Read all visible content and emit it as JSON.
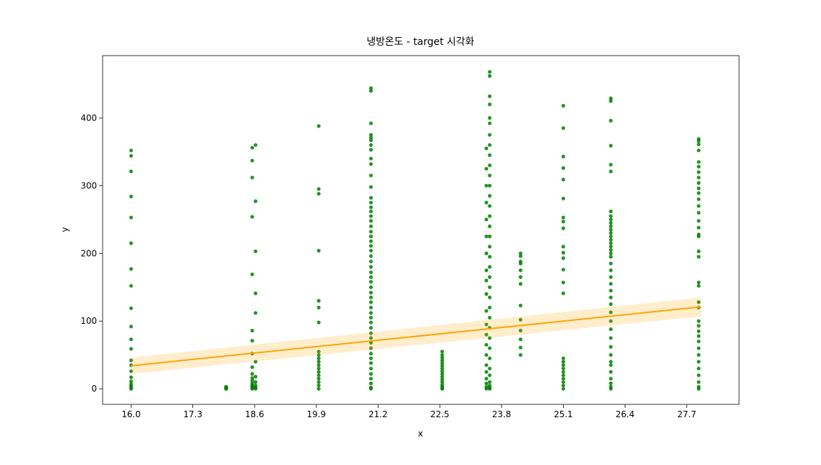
{
  "chart_data": {
    "type": "scatter",
    "title": "냉방온도 - target 시각화",
    "xlabel": "x",
    "ylabel": "y",
    "xlim": [
      15.4,
      28.8
    ],
    "ylim": [
      -23,
      492
    ],
    "xticks": [
      16.0,
      17.3,
      18.6,
      19.9,
      21.2,
      22.5,
      23.8,
      25.1,
      26.4,
      27.7
    ],
    "xtick_labels": [
      "16.0",
      "17.3",
      "18.6",
      "19.9",
      "21.2",
      "22.5",
      "23.8",
      "25.1",
      "26.4",
      "27.7"
    ],
    "yticks": [
      0,
      100,
      200,
      300,
      400
    ],
    "ytick_labels": [
      "0",
      "100",
      "200",
      "300",
      "400"
    ],
    "grid": false,
    "colors": {
      "points": "#008000",
      "regression": "#ffa500",
      "band": "#ffa500"
    },
    "regression": {
      "x": [
        16.0,
        28.0
      ],
      "y": [
        34,
        121
      ],
      "ci_lower": [
        22,
        107
      ],
      "ci_upper": [
        46,
        135
      ]
    },
    "points": [
      {
        "x": 16.0,
        "y": [
          352,
          344,
          321,
          284,
          253,
          215,
          177,
          152,
          119,
          92,
          73,
          59,
          42,
          35,
          26,
          17,
          11,
          7,
          4,
          2,
          0
        ]
      },
      {
        "x": 18.0,
        "y": [
          3,
          2,
          1,
          0,
          2,
          1,
          0
        ]
      },
      {
        "x": 18.55,
        "y": [
          356,
          337,
          312,
          254,
          169,
          86,
          71,
          52,
          32,
          22,
          16,
          12,
          8,
          5,
          3,
          2,
          0
        ]
      },
      {
        "x": 18.62,
        "y": [
          360,
          277,
          203,
          141,
          112,
          40,
          18,
          10,
          5,
          2,
          0
        ]
      },
      {
        "x": 19.95,
        "y": [
          388,
          295,
          288,
          204,
          130,
          120,
          98,
          55,
          50,
          45,
          40,
          35,
          30,
          25,
          20,
          15,
          10,
          5,
          0
        ]
      },
      {
        "x": 21.05,
        "y": [
          444,
          440,
          392,
          375,
          371,
          367,
          360,
          353,
          340,
          332,
          315,
          298,
          282,
          275,
          268,
          262,
          255,
          248,
          240,
          232,
          225,
          218,
          211,
          204,
          196,
          188,
          180,
          172,
          165,
          158,
          150,
          142,
          135,
          128,
          120,
          112,
          105,
          98,
          90,
          82,
          75,
          68,
          60,
          52,
          45,
          38,
          30,
          22,
          15,
          8,
          2,
          0
        ]
      },
      {
        "x": 22.55,
        "y": [
          55,
          50,
          46,
          42,
          38,
          34,
          30,
          26,
          22,
          18,
          14,
          10,
          6,
          3,
          1,
          0
        ]
      },
      {
        "x": 23.55,
        "y": [
          468,
          462,
          432,
          420,
          400,
          392,
          375,
          360,
          345,
          330,
          315,
          300,
          285,
          270,
          255,
          240,
          225,
          210,
          195,
          180,
          165,
          150,
          135,
          120,
          105,
          90,
          75,
          60,
          45,
          30,
          20,
          10,
          5,
          2,
          0
        ]
      },
      {
        "x": 23.48,
        "y": [
          355,
          325,
          300,
          275,
          250,
          225,
          200,
          175,
          160,
          140,
          115,
          95,
          80,
          65,
          50,
          35,
          25,
          15,
          8,
          3,
          0
        ]
      },
      {
        "x": 24.2,
        "y": [
          200,
          196,
          188,
          185,
          175,
          165,
          155,
          123,
          102,
          86,
          73,
          61,
          50
        ]
      },
      {
        "x": 25.1,
        "y": [
          418,
          385,
          343,
          326,
          309,
          281,
          253,
          247,
          237,
          210,
          201,
          193,
          176,
          157,
          141,
          45,
          40,
          35,
          30,
          25,
          20,
          15,
          10,
          5,
          0
        ]
      },
      {
        "x": 26.1,
        "y": [
          429,
          425,
          396,
          359,
          331,
          321,
          262,
          255,
          250,
          245,
          240,
          235,
          230,
          225,
          220,
          215,
          210,
          205,
          200,
          195,
          185,
          175,
          165,
          155,
          145,
          135,
          125,
          113,
          100,
          88,
          75,
          62,
          50,
          40,
          35,
          25,
          15,
          8,
          3,
          0
        ]
      },
      {
        "x": 27.95,
        "y": [
          369,
          366,
          361,
          352,
          335,
          328,
          320,
          312,
          304,
          296,
          289,
          280,
          270,
          260,
          248,
          238,
          228,
          225,
          203,
          195,
          157,
          152,
          128,
          120,
          100,
          93,
          85,
          78,
          70,
          60,
          50,
          40,
          30,
          20,
          10,
          3,
          0
        ]
      }
    ]
  }
}
